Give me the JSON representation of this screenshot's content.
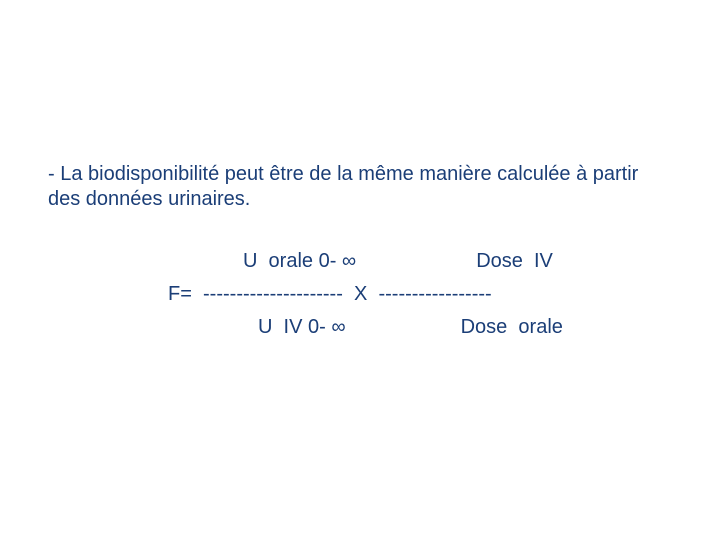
{
  "colors": {
    "text": "#1b3e77",
    "background": "#ffffff"
  },
  "typography": {
    "font_family": "Verdana, Geneva, sans-serif",
    "font_size_pt": 15
  },
  "intro": "- La biodisponibilité peut être de la même manière calculée à partir des données urinaires.",
  "formula": {
    "numerator_left": "U  orale 0- ∞",
    "numerator_right": "Dose  IV",
    "mid_prefix": "F=  ",
    "dashes_left": "---------------------",
    "mid_x": "  X  ",
    "dashes_right": "-----------------",
    "denominator_left": "U  IV 0- ∞",
    "denominator_right": "Dose  orale"
  }
}
